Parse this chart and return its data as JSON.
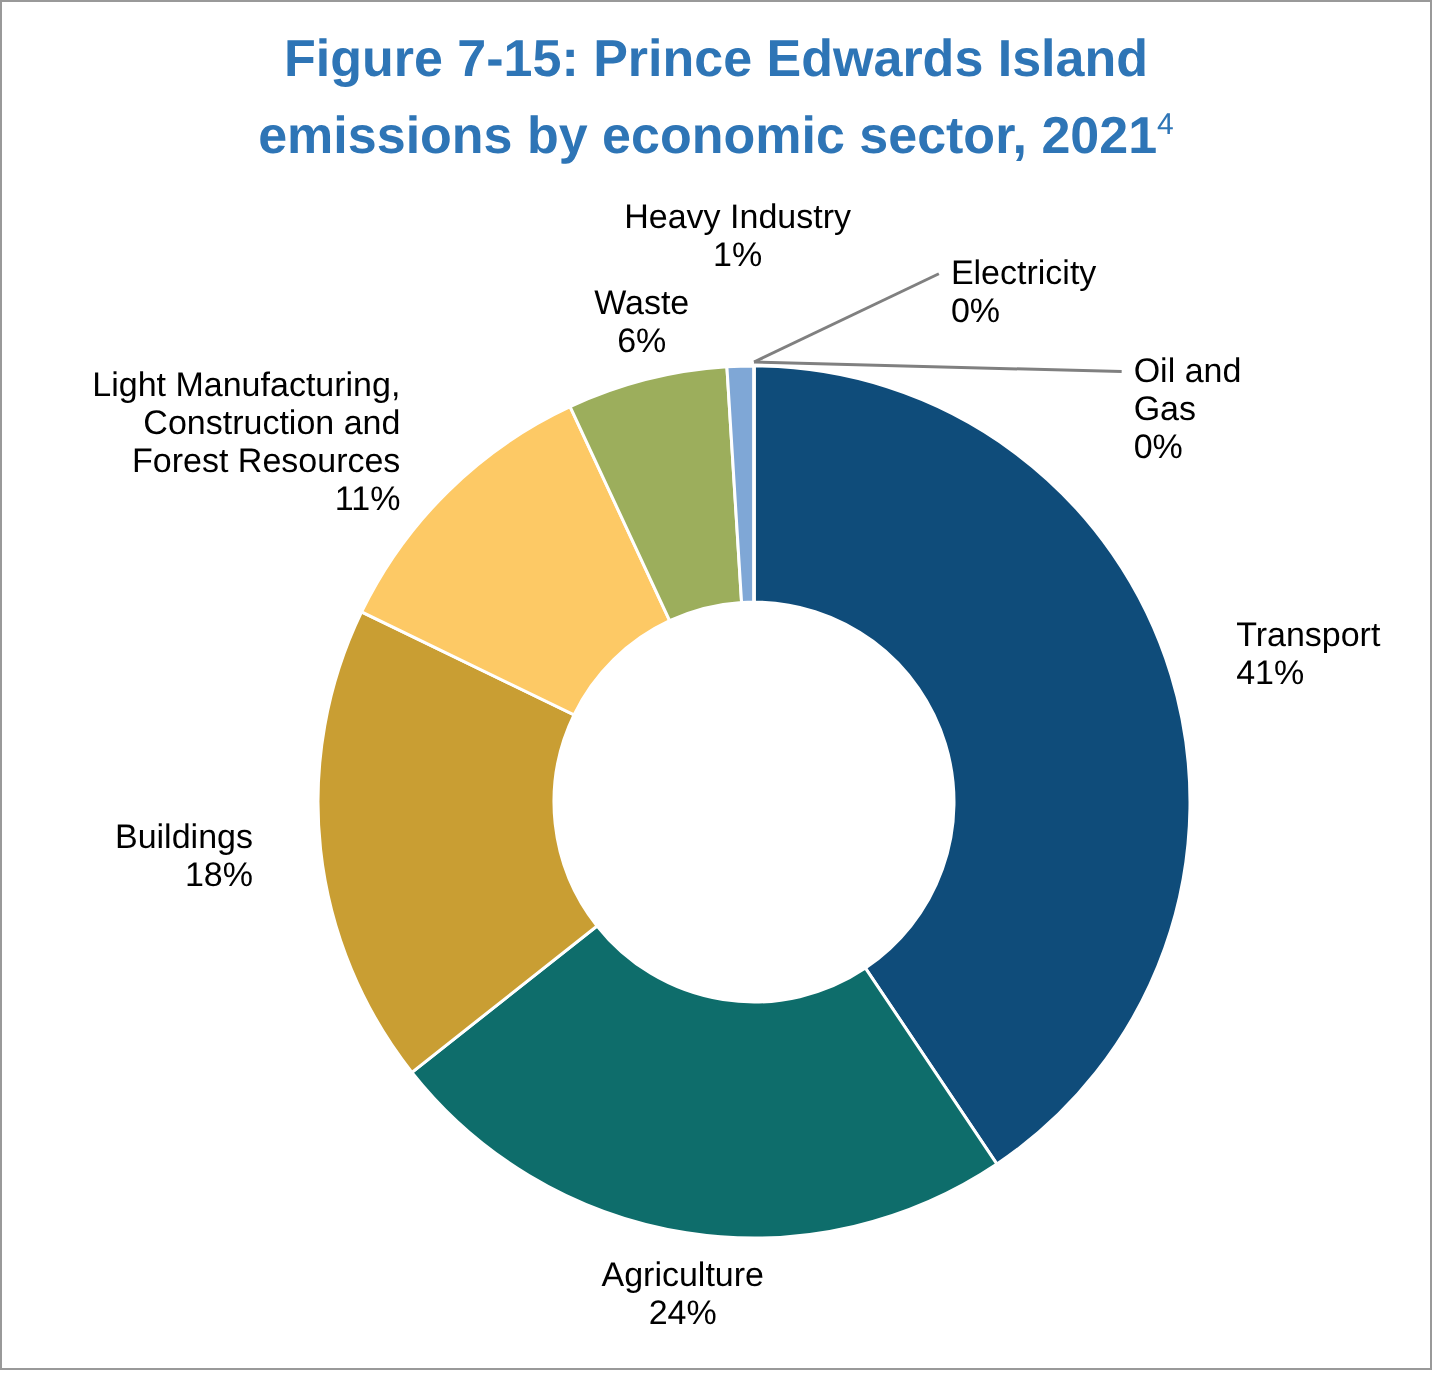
{
  "chart_data": {
    "type": "donut",
    "title": "Figure 7-15: Prince Edwards Island emissions by economic sector, 2021$^{4}$",
    "categories": [
      "Transport",
      "Agriculture",
      "Buildings",
      "Light Manufacturing,\nConstruction and\nForest Resources",
      "Waste",
      "Heavy Industry",
      "Electricity",
      "Oil and\nGas"
    ],
    "values": [
      41,
      24,
      18,
      11,
      6,
      1,
      0,
      0
    ],
    "value_labels": [
      "41%",
      "24%",
      "18%",
      "11%",
      "6%",
      "1%",
      "0%",
      "0%"
    ],
    "colors": [
      "#0f4c7a",
      "#0e6d6b",
      "#c99e33",
      "#fdc965",
      "#9cae5c",
      "#7fa7d6",
      "#a6a6a6",
      "#1f3f66"
    ]
  }
}
